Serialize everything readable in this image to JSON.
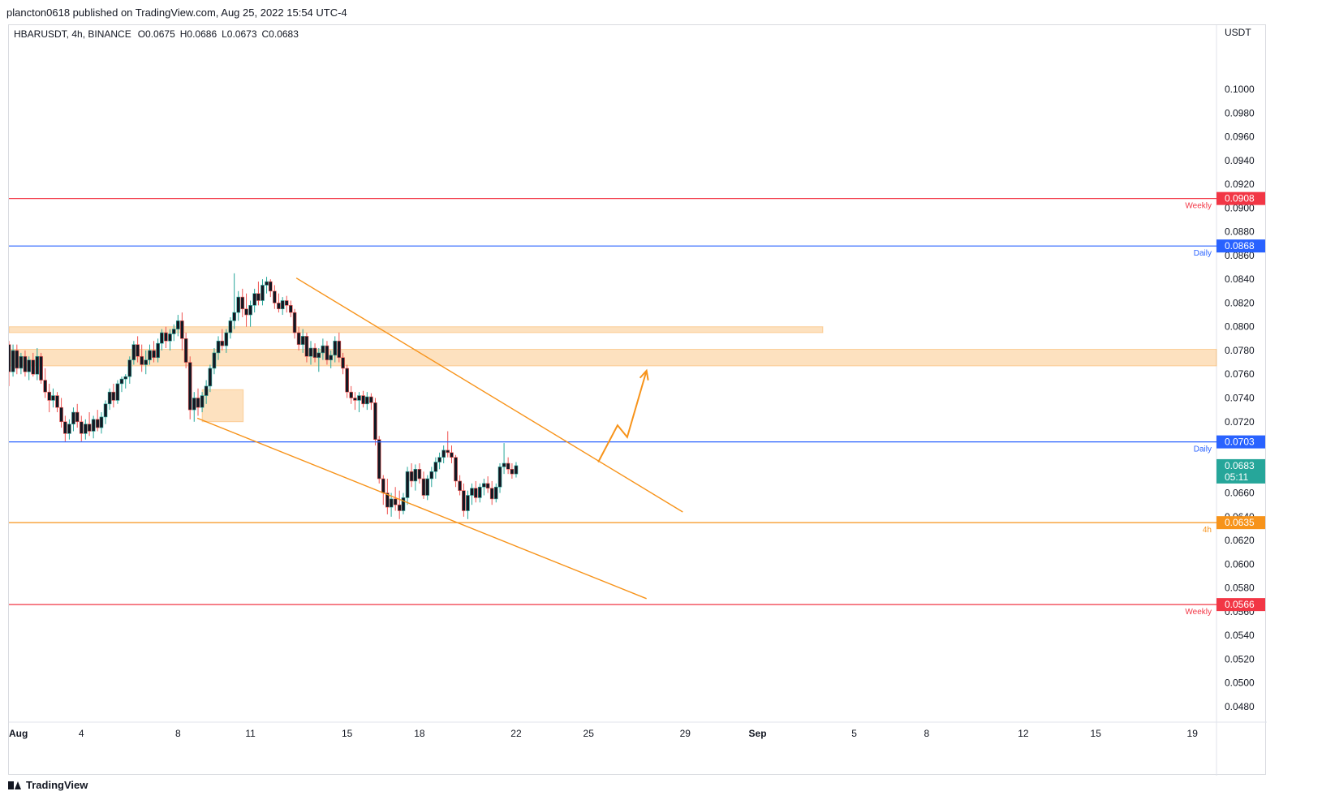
{
  "publisher_text": "plancton0618 published on TradingView.com, Aug 25, 2022 15:54 UTC-4",
  "brand": "TradingView",
  "chart_data": {
    "type": "candlestick",
    "symbol": "HBARUSDT",
    "interval": "4h",
    "exchange": "BINANCE",
    "ohlc_labels": {
      "open": "O0.0675",
      "high": "H0.0686",
      "low": "L0.0673",
      "close": "C0.0683"
    },
    "ticker_line": "HBARUSDT, 4h, BINANCE",
    "currency": "USDT",
    "ylim": [
      0.0467,
      0.1054
    ],
    "y_ticks": [
      "0.1000",
      "0.0980",
      "0.0960",
      "0.0940",
      "0.0920",
      "0.0900",
      "0.0880",
      "0.0860",
      "0.0840",
      "0.0820",
      "0.0800",
      "0.0780",
      "0.0760",
      "0.0740",
      "0.0720",
      "0.0660",
      "0.0640",
      "0.0620",
      "0.0600",
      "0.0580",
      "0.0560",
      "0.0540",
      "0.0520",
      "0.0500",
      "0.0480"
    ],
    "y_tick_values": [
      0.1,
      0.098,
      0.096,
      0.094,
      0.092,
      0.09,
      0.088,
      0.086,
      0.084,
      0.082,
      0.08,
      0.078,
      0.076,
      0.074,
      0.072,
      0.066,
      0.064,
      0.062,
      0.06,
      0.058,
      0.056,
      0.054,
      0.052,
      0.05,
      0.048
    ],
    "x_range_days": [
      1,
      51
    ],
    "x_ticks": [
      {
        "label": "Aug",
        "day": 1,
        "bold": true
      },
      {
        "label": "4",
        "day": 4
      },
      {
        "label": "8",
        "day": 8
      },
      {
        "label": "11",
        "day": 11
      },
      {
        "label": "15",
        "day": 15
      },
      {
        "label": "18",
        "day": 18
      },
      {
        "label": "22",
        "day": 22
      },
      {
        "label": "25",
        "day": 25
      },
      {
        "label": "29",
        "day": 29
      },
      {
        "label": "Sep",
        "day": 32,
        "bold": true
      },
      {
        "label": "5",
        "day": 36
      },
      {
        "label": "8",
        "day": 39
      },
      {
        "label": "12",
        "day": 43
      },
      {
        "label": "15",
        "day": 46
      },
      {
        "label": "19",
        "day": 50
      }
    ],
    "horizontal_levels": [
      {
        "name": "weekly-top",
        "price": 0.0908,
        "label": "0.0908",
        "tag": "Weekly",
        "color": "#f23645"
      },
      {
        "name": "daily-top",
        "price": 0.0868,
        "label": "0.0868",
        "tag": "Daily",
        "color": "#2962ff"
      },
      {
        "name": "daily-bottom",
        "price": 0.0703,
        "label": "0.0703",
        "tag": "Daily",
        "color": "#2962ff"
      },
      {
        "name": "h4",
        "price": 0.0635,
        "label": "0.0635",
        "tag": "4h",
        "color": "#f7931a"
      },
      {
        "name": "weekly-bottom",
        "price": 0.0566,
        "label": "0.0566",
        "tag": "Weekly",
        "color": "#f23645"
      }
    ],
    "current_price": {
      "label": "0.0683",
      "countdown": "05:11",
      "price": 0.0683,
      "color": "#26a69a"
    },
    "zones": [
      {
        "name": "thin-zone",
        "day_start": 1,
        "day_end": 34.7,
        "price_low": 0.0795,
        "price_high": 0.08
      },
      {
        "name": "wide-zone",
        "day_start": 1,
        "day_end": 51,
        "price_low": 0.0767,
        "price_high": 0.0781
      },
      {
        "name": "small-box",
        "day_start": 9.0,
        "day_end": 10.7,
        "price_low": 0.072,
        "price_high": 0.0747
      }
    ],
    "trendlines": [
      {
        "name": "upper-wedge-line",
        "from": [
          12.9,
          0.0841
        ],
        "to": [
          28.9,
          0.0644
        ],
        "color": "#f7931a"
      },
      {
        "name": "lower-wedge-line",
        "from": [
          8.8,
          0.0723
        ],
        "to": [
          27.4,
          0.0571
        ],
        "color": "#f7931a"
      }
    ],
    "projection_arrow": [
      [
        25.4,
        0.0686
      ],
      [
        26.2,
        0.0717
      ],
      [
        26.6,
        0.0707
      ],
      [
        27.4,
        0.0763
      ]
    ],
    "candles": [
      {
        "d": 1.0,
        "o": 0.0785,
        "h": 0.0788,
        "l": 0.075,
        "c": 0.0762
      },
      {
        "d": 1.17,
        "o": 0.0762,
        "h": 0.0785,
        "l": 0.0758,
        "c": 0.078
      },
      {
        "d": 1.33,
        "o": 0.078,
        "h": 0.0785,
        "l": 0.076,
        "c": 0.0765
      },
      {
        "d": 1.5,
        "o": 0.0765,
        "h": 0.0778,
        "l": 0.076,
        "c": 0.0775
      },
      {
        "d": 1.67,
        "o": 0.0775,
        "h": 0.078,
        "l": 0.0758,
        "c": 0.0762
      },
      {
        "d": 1.83,
        "o": 0.0762,
        "h": 0.0775,
        "l": 0.0755,
        "c": 0.0772
      },
      {
        "d": 2.0,
        "o": 0.0772,
        "h": 0.0778,
        "l": 0.0758,
        "c": 0.076
      },
      {
        "d": 2.17,
        "o": 0.076,
        "h": 0.0782,
        "l": 0.0755,
        "c": 0.0775
      },
      {
        "d": 2.33,
        "o": 0.0775,
        "h": 0.0778,
        "l": 0.0752,
        "c": 0.0755
      },
      {
        "d": 2.5,
        "o": 0.0755,
        "h": 0.0765,
        "l": 0.074,
        "c": 0.0745
      },
      {
        "d": 2.67,
        "o": 0.0745,
        "h": 0.0752,
        "l": 0.0728,
        "c": 0.0738
      },
      {
        "d": 2.83,
        "o": 0.0738,
        "h": 0.0748,
        "l": 0.0732,
        "c": 0.0742
      },
      {
        "d": 3.0,
        "o": 0.0742,
        "h": 0.0745,
        "l": 0.0728,
        "c": 0.0732
      },
      {
        "d": 3.17,
        "o": 0.0732,
        "h": 0.074,
        "l": 0.0715,
        "c": 0.072
      },
      {
        "d": 3.33,
        "o": 0.072,
        "h": 0.0725,
        "l": 0.0703,
        "c": 0.071
      },
      {
        "d": 3.5,
        "o": 0.071,
        "h": 0.0722,
        "l": 0.0705,
        "c": 0.0718
      },
      {
        "d": 3.67,
        "o": 0.0718,
        "h": 0.0732,
        "l": 0.0712,
        "c": 0.0728
      },
      {
        "d": 3.83,
        "o": 0.0728,
        "h": 0.0735,
        "l": 0.0715,
        "c": 0.072
      },
      {
        "d": 4.0,
        "o": 0.072,
        "h": 0.0725,
        "l": 0.0703,
        "c": 0.071
      },
      {
        "d": 4.17,
        "o": 0.071,
        "h": 0.0722,
        "l": 0.0705,
        "c": 0.0718
      },
      {
        "d": 4.33,
        "o": 0.0718,
        "h": 0.0728,
        "l": 0.0708,
        "c": 0.0712
      },
      {
        "d": 4.5,
        "o": 0.0712,
        "h": 0.0725,
        "l": 0.0706,
        "c": 0.0722
      },
      {
        "d": 4.67,
        "o": 0.0722,
        "h": 0.073,
        "l": 0.0712,
        "c": 0.0715
      },
      {
        "d": 4.83,
        "o": 0.0715,
        "h": 0.0728,
        "l": 0.071,
        "c": 0.0724
      },
      {
        "d": 5.0,
        "o": 0.0724,
        "h": 0.0738,
        "l": 0.0718,
        "c": 0.0735
      },
      {
        "d": 5.17,
        "o": 0.0735,
        "h": 0.0748,
        "l": 0.073,
        "c": 0.0745
      },
      {
        "d": 5.33,
        "o": 0.0745,
        "h": 0.0752,
        "l": 0.0732,
        "c": 0.0738
      },
      {
        "d": 5.5,
        "o": 0.0738,
        "h": 0.0755,
        "l": 0.0735,
        "c": 0.0752
      },
      {
        "d": 5.67,
        "o": 0.0752,
        "h": 0.0758,
        "l": 0.0745,
        "c": 0.0756
      },
      {
        "d": 5.83,
        "o": 0.0756,
        "h": 0.076,
        "l": 0.0748,
        "c": 0.0758
      },
      {
        "d": 6.0,
        "o": 0.0758,
        "h": 0.0775,
        "l": 0.0752,
        "c": 0.0772
      },
      {
        "d": 6.17,
        "o": 0.0772,
        "h": 0.0788,
        "l": 0.0768,
        "c": 0.0785
      },
      {
        "d": 6.33,
        "o": 0.0785,
        "h": 0.0792,
        "l": 0.077,
        "c": 0.0775
      },
      {
        "d": 6.5,
        "o": 0.0775,
        "h": 0.0785,
        "l": 0.0762,
        "c": 0.0768
      },
      {
        "d": 6.67,
        "o": 0.0768,
        "h": 0.078,
        "l": 0.076,
        "c": 0.0772
      },
      {
        "d": 6.83,
        "o": 0.0772,
        "h": 0.0785,
        "l": 0.0768,
        "c": 0.078
      },
      {
        "d": 7.0,
        "o": 0.078,
        "h": 0.0788,
        "l": 0.077,
        "c": 0.0774
      },
      {
        "d": 7.17,
        "o": 0.0774,
        "h": 0.079,
        "l": 0.077,
        "c": 0.0786
      },
      {
        "d": 7.33,
        "o": 0.0786,
        "h": 0.0798,
        "l": 0.078,
        "c": 0.0795
      },
      {
        "d": 7.5,
        "o": 0.0795,
        "h": 0.08,
        "l": 0.0782,
        "c": 0.0788
      },
      {
        "d": 7.67,
        "o": 0.0788,
        "h": 0.0798,
        "l": 0.078,
        "c": 0.0794
      },
      {
        "d": 7.83,
        "o": 0.0794,
        "h": 0.0802,
        "l": 0.0788,
        "c": 0.0798
      },
      {
        "d": 8.0,
        "o": 0.0798,
        "h": 0.081,
        "l": 0.0792,
        "c": 0.0805
      },
      {
        "d": 8.17,
        "o": 0.0805,
        "h": 0.0812,
        "l": 0.078,
        "c": 0.079
      },
      {
        "d": 8.33,
        "o": 0.079,
        "h": 0.0795,
        "l": 0.0765,
        "c": 0.077
      },
      {
        "d": 8.5,
        "o": 0.077,
        "h": 0.0775,
        "l": 0.0722,
        "c": 0.073
      },
      {
        "d": 8.67,
        "o": 0.073,
        "h": 0.0745,
        "l": 0.072,
        "c": 0.074
      },
      {
        "d": 8.83,
        "o": 0.074,
        "h": 0.0748,
        "l": 0.0725,
        "c": 0.0732
      },
      {
        "d": 9.0,
        "o": 0.0732,
        "h": 0.0745,
        "l": 0.0728,
        "c": 0.0742
      },
      {
        "d": 9.17,
        "o": 0.0742,
        "h": 0.0755,
        "l": 0.0735,
        "c": 0.075
      },
      {
        "d": 9.33,
        "o": 0.075,
        "h": 0.0768,
        "l": 0.0745,
        "c": 0.0765
      },
      {
        "d": 9.5,
        "o": 0.0765,
        "h": 0.0782,
        "l": 0.076,
        "c": 0.0778
      },
      {
        "d": 9.67,
        "o": 0.0778,
        "h": 0.0792,
        "l": 0.0772,
        "c": 0.0788
      },
      {
        "d": 9.83,
        "o": 0.0788,
        "h": 0.0798,
        "l": 0.078,
        "c": 0.0784
      },
      {
        "d": 10.0,
        "o": 0.0784,
        "h": 0.0798,
        "l": 0.0778,
        "c": 0.0795
      },
      {
        "d": 10.17,
        "o": 0.0795,
        "h": 0.0808,
        "l": 0.079,
        "c": 0.0805
      },
      {
        "d": 10.33,
        "o": 0.0805,
        "h": 0.0845,
        "l": 0.0798,
        "c": 0.0812
      },
      {
        "d": 10.5,
        "o": 0.0812,
        "h": 0.083,
        "l": 0.0805,
        "c": 0.0825
      },
      {
        "d": 10.67,
        "o": 0.0825,
        "h": 0.0832,
        "l": 0.0808,
        "c": 0.0815
      },
      {
        "d": 10.83,
        "o": 0.0815,
        "h": 0.0828,
        "l": 0.08,
        "c": 0.081
      },
      {
        "d": 11.0,
        "o": 0.081,
        "h": 0.0822,
        "l": 0.08,
        "c": 0.0818
      },
      {
        "d": 11.17,
        "o": 0.0818,
        "h": 0.0832,
        "l": 0.0812,
        "c": 0.0828
      },
      {
        "d": 11.33,
        "o": 0.0828,
        "h": 0.0838,
        "l": 0.0818,
        "c": 0.0822
      },
      {
        "d": 11.5,
        "o": 0.0822,
        "h": 0.084,
        "l": 0.0818,
        "c": 0.0835
      },
      {
        "d": 11.67,
        "o": 0.0835,
        "h": 0.0842,
        "l": 0.0828,
        "c": 0.0838
      },
      {
        "d": 11.83,
        "o": 0.0838,
        "h": 0.084,
        "l": 0.0825,
        "c": 0.083
      },
      {
        "d": 12.0,
        "o": 0.083,
        "h": 0.0835,
        "l": 0.0815,
        "c": 0.082
      },
      {
        "d": 12.17,
        "o": 0.082,
        "h": 0.0828,
        "l": 0.0812,
        "c": 0.0815
      },
      {
        "d": 12.33,
        "o": 0.0815,
        "h": 0.0825,
        "l": 0.081,
        "c": 0.0822
      },
      {
        "d": 12.5,
        "o": 0.0822,
        "h": 0.0826,
        "l": 0.0812,
        "c": 0.0818
      },
      {
        "d": 12.67,
        "o": 0.0818,
        "h": 0.0822,
        "l": 0.0808,
        "c": 0.0812
      },
      {
        "d": 12.83,
        "o": 0.0812,
        "h": 0.0815,
        "l": 0.079,
        "c": 0.0795
      },
      {
        "d": 13.0,
        "o": 0.0795,
        "h": 0.08,
        "l": 0.078,
        "c": 0.0785
      },
      {
        "d": 13.17,
        "o": 0.0785,
        "h": 0.0798,
        "l": 0.0778,
        "c": 0.0792
      },
      {
        "d": 13.33,
        "o": 0.0792,
        "h": 0.0795,
        "l": 0.077,
        "c": 0.0775
      },
      {
        "d": 13.5,
        "o": 0.0775,
        "h": 0.0788,
        "l": 0.0768,
        "c": 0.0782
      },
      {
        "d": 13.67,
        "o": 0.0782,
        "h": 0.0786,
        "l": 0.077,
        "c": 0.0774
      },
      {
        "d": 13.83,
        "o": 0.0774,
        "h": 0.0782,
        "l": 0.0762,
        "c": 0.0778
      },
      {
        "d": 14.0,
        "o": 0.0778,
        "h": 0.079,
        "l": 0.0772,
        "c": 0.0784
      },
      {
        "d": 14.17,
        "o": 0.0784,
        "h": 0.0788,
        "l": 0.0768,
        "c": 0.0772
      },
      {
        "d": 14.33,
        "o": 0.0772,
        "h": 0.078,
        "l": 0.0765,
        "c": 0.0776
      },
      {
        "d": 14.5,
        "o": 0.0776,
        "h": 0.0792,
        "l": 0.077,
        "c": 0.0788
      },
      {
        "d": 14.67,
        "o": 0.0788,
        "h": 0.0795,
        "l": 0.077,
        "c": 0.0774
      },
      {
        "d": 14.83,
        "o": 0.0774,
        "h": 0.0778,
        "l": 0.076,
        "c": 0.0765
      },
      {
        "d": 15.0,
        "o": 0.0765,
        "h": 0.0768,
        "l": 0.074,
        "c": 0.0745
      },
      {
        "d": 15.17,
        "o": 0.0745,
        "h": 0.075,
        "l": 0.0735,
        "c": 0.074
      },
      {
        "d": 15.33,
        "o": 0.074,
        "h": 0.0745,
        "l": 0.073,
        "c": 0.0738
      },
      {
        "d": 15.5,
        "o": 0.0738,
        "h": 0.0745,
        "l": 0.0728,
        "c": 0.0742
      },
      {
        "d": 15.67,
        "o": 0.0742,
        "h": 0.0746,
        "l": 0.0732,
        "c": 0.0735
      },
      {
        "d": 15.83,
        "o": 0.0735,
        "h": 0.0745,
        "l": 0.073,
        "c": 0.0741
      },
      {
        "d": 16.0,
        "o": 0.0741,
        "h": 0.0744,
        "l": 0.073,
        "c": 0.0736
      },
      {
        "d": 16.17,
        "o": 0.0736,
        "h": 0.074,
        "l": 0.07,
        "c": 0.0705
      },
      {
        "d": 16.33,
        "o": 0.0705,
        "h": 0.0708,
        "l": 0.0668,
        "c": 0.0672
      },
      {
        "d": 16.5,
        "o": 0.0672,
        "h": 0.0675,
        "l": 0.065,
        "c": 0.066
      },
      {
        "d": 16.67,
        "o": 0.066,
        "h": 0.0672,
        "l": 0.0642,
        "c": 0.0648
      },
      {
        "d": 16.83,
        "o": 0.0648,
        "h": 0.066,
        "l": 0.064,
        "c": 0.0655
      },
      {
        "d": 17.0,
        "o": 0.0655,
        "h": 0.0665,
        "l": 0.0645,
        "c": 0.065
      },
      {
        "d": 17.17,
        "o": 0.065,
        "h": 0.0662,
        "l": 0.0638,
        "c": 0.0645
      },
      {
        "d": 17.33,
        "o": 0.0645,
        "h": 0.066,
        "l": 0.0642,
        "c": 0.0656
      },
      {
        "d": 17.5,
        "o": 0.0656,
        "h": 0.0682,
        "l": 0.065,
        "c": 0.0678
      },
      {
        "d": 17.67,
        "o": 0.0678,
        "h": 0.0685,
        "l": 0.0665,
        "c": 0.067
      },
      {
        "d": 17.83,
        "o": 0.067,
        "h": 0.0684,
        "l": 0.0662,
        "c": 0.068
      },
      {
        "d": 18.0,
        "o": 0.068,
        "h": 0.0685,
        "l": 0.0668,
        "c": 0.0672
      },
      {
        "d": 18.17,
        "o": 0.0672,
        "h": 0.0678,
        "l": 0.0655,
        "c": 0.0658
      },
      {
        "d": 18.33,
        "o": 0.0658,
        "h": 0.0675,
        "l": 0.0654,
        "c": 0.0672
      },
      {
        "d": 18.5,
        "o": 0.0672,
        "h": 0.0682,
        "l": 0.0665,
        "c": 0.0678
      },
      {
        "d": 18.67,
        "o": 0.0678,
        "h": 0.069,
        "l": 0.0672,
        "c": 0.0686
      },
      {
        "d": 18.83,
        "o": 0.0686,
        "h": 0.0694,
        "l": 0.068,
        "c": 0.069
      },
      {
        "d": 19.0,
        "o": 0.069,
        "h": 0.07,
        "l": 0.0685,
        "c": 0.0696
      },
      {
        "d": 19.17,
        "o": 0.0696,
        "h": 0.0712,
        "l": 0.069,
        "c": 0.0694
      },
      {
        "d": 19.33,
        "o": 0.0694,
        "h": 0.07,
        "l": 0.0685,
        "c": 0.069
      },
      {
        "d": 19.5,
        "o": 0.069,
        "h": 0.0692,
        "l": 0.0665,
        "c": 0.067
      },
      {
        "d": 19.67,
        "o": 0.067,
        "h": 0.0675,
        "l": 0.0658,
        "c": 0.0662
      },
      {
        "d": 19.83,
        "o": 0.0662,
        "h": 0.0668,
        "l": 0.064,
        "c": 0.0645
      },
      {
        "d": 20.0,
        "o": 0.0645,
        "h": 0.0662,
        "l": 0.0638,
        "c": 0.0658
      },
      {
        "d": 20.17,
        "o": 0.0658,
        "h": 0.0668,
        "l": 0.065,
        "c": 0.0664
      },
      {
        "d": 20.33,
        "o": 0.0664,
        "h": 0.067,
        "l": 0.0652,
        "c": 0.0656
      },
      {
        "d": 20.5,
        "o": 0.0656,
        "h": 0.0668,
        "l": 0.0652,
        "c": 0.0665
      },
      {
        "d": 20.67,
        "o": 0.0665,
        "h": 0.0672,
        "l": 0.0658,
        "c": 0.0668
      },
      {
        "d": 20.83,
        "o": 0.0668,
        "h": 0.0674,
        "l": 0.066,
        "c": 0.0664
      },
      {
        "d": 21.0,
        "o": 0.0664,
        "h": 0.067,
        "l": 0.065,
        "c": 0.0655
      },
      {
        "d": 21.17,
        "o": 0.0655,
        "h": 0.0668,
        "l": 0.0652,
        "c": 0.0665
      },
      {
        "d": 21.33,
        "o": 0.0665,
        "h": 0.0685,
        "l": 0.066,
        "c": 0.0682
      },
      {
        "d": 21.5,
        "o": 0.0682,
        "h": 0.0702,
        "l": 0.0676,
        "c": 0.0685
      },
      {
        "d": 21.67,
        "o": 0.0685,
        "h": 0.069,
        "l": 0.0676,
        "c": 0.068
      },
      {
        "d": 21.83,
        "o": 0.068,
        "h": 0.0685,
        "l": 0.0672,
        "c": 0.0676
      },
      {
        "d": 22.0,
        "o": 0.0676,
        "h": 0.0686,
        "l": 0.0673,
        "c": 0.0683
      }
    ]
  }
}
